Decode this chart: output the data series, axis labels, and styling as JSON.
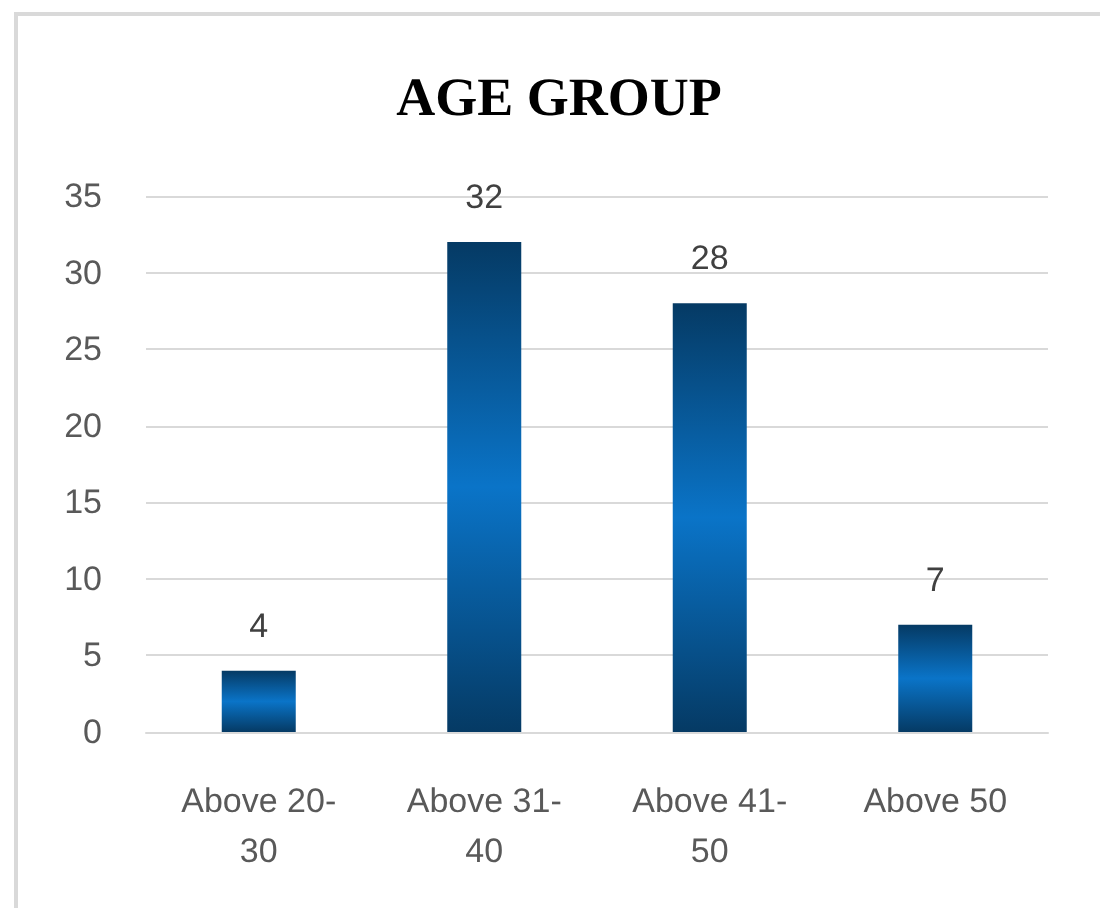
{
  "chart_data": {
    "type": "bar",
    "title": "AGE GROUP",
    "categories": [
      "Above 20-30",
      "Above 31-40",
      "Above 41-50",
      "Above 50"
    ],
    "values": [
      4,
      32,
      28,
      7
    ],
    "color": "#0a74c8",
    "ylim": [
      0,
      35
    ],
    "yticks": [
      0,
      5,
      10,
      15,
      20,
      25,
      30,
      35
    ],
    "grid": "y",
    "data_labels": true
  }
}
